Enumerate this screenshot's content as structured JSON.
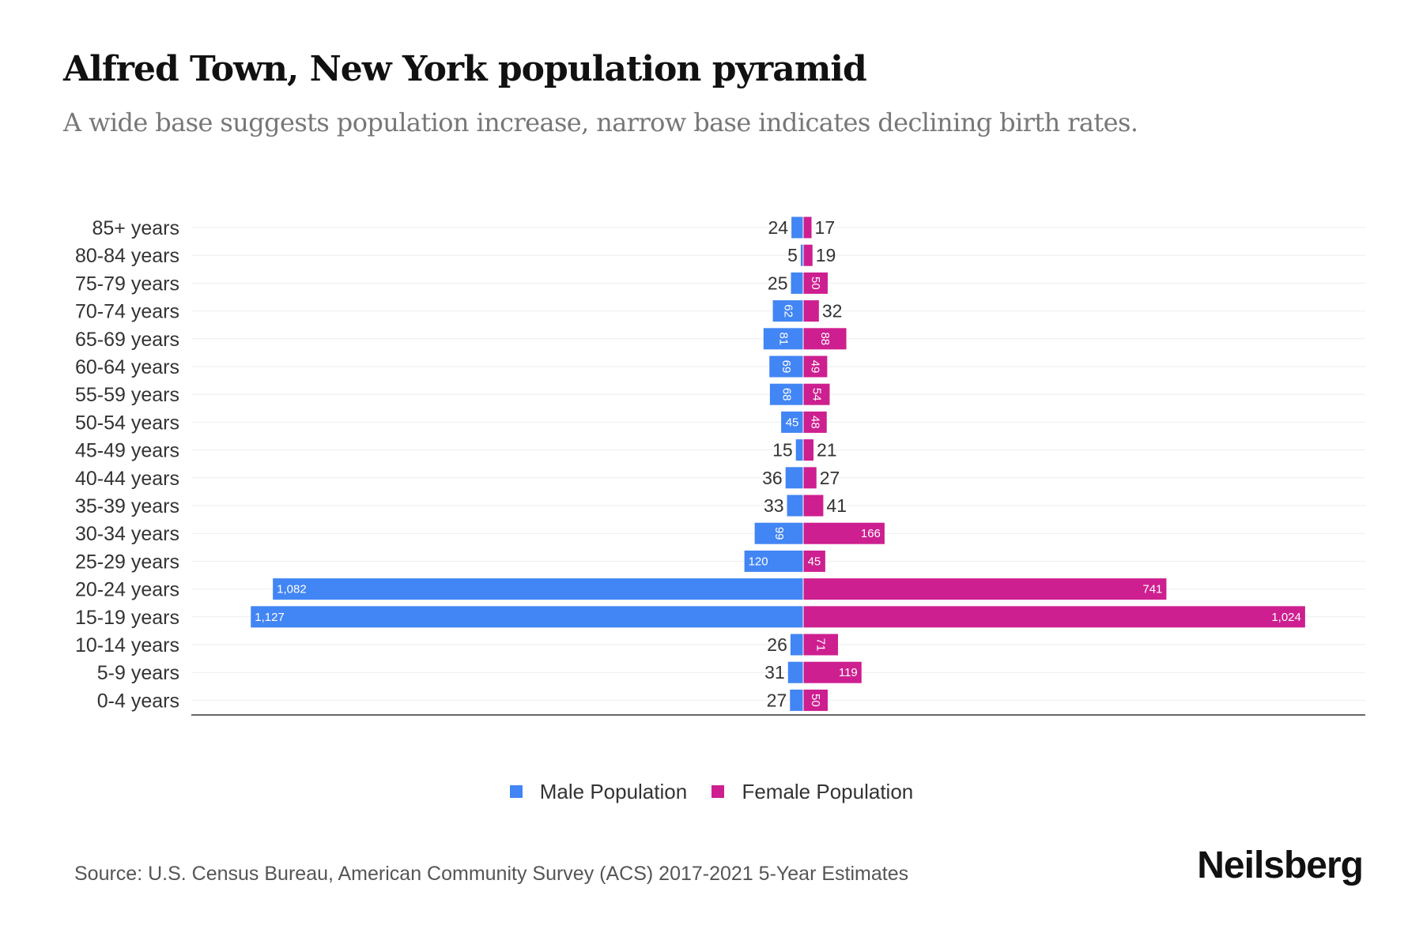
{
  "title": "Alfred Town, New York population pyramid",
  "subtitle": "A wide base suggests population increase, narrow base indicates declining birth rates.",
  "source": "Source: U.S. Census Bureau, American Community Survey (ACS) 2017-2021 5-Year Estimates",
  "brand": "Neilsberg",
  "colors": {
    "male": "#4285f4",
    "female": "#cd1f8f"
  },
  "chart_data": {
    "type": "bar",
    "orientation": "horizontal-pyramid",
    "categories": [
      "85+ years",
      "80-84 years",
      "75-79 years",
      "70-74 years",
      "65-69 years",
      "60-64 years",
      "55-59 years",
      "50-54 years",
      "45-49 years",
      "40-44 years",
      "35-39 years",
      "30-34 years",
      "25-29 years",
      "20-24 years",
      "15-19 years",
      "10-14 years",
      "5-9 years",
      "0-4 years"
    ],
    "series": [
      {
        "name": "Male Population",
        "values": [
          24,
          5,
          25,
          62,
          81,
          69,
          68,
          45,
          15,
          36,
          33,
          99,
          120,
          1082,
          1127,
          26,
          31,
          27
        ],
        "label_style": [
          "outside",
          "outside",
          "outside",
          "rotated",
          "rotated",
          "rotated",
          "rotated",
          "inside",
          "outside",
          "outside",
          "outside",
          "rotated",
          "inside",
          "inside",
          "inside",
          "outside",
          "outside",
          "outside"
        ]
      },
      {
        "name": "Female Population",
        "values": [
          17,
          19,
          50,
          32,
          88,
          49,
          54,
          48,
          21,
          27,
          41,
          166,
          45,
          741,
          1024,
          71,
          119,
          50
        ],
        "label_style": [
          "outside",
          "outside",
          "rotated",
          "outside",
          "rotated",
          "rotated",
          "rotated",
          "rotated",
          "outside",
          "outside",
          "outside",
          "inside",
          "inside",
          "inside",
          "inside",
          "rotated",
          "inside",
          "rotated"
        ]
      }
    ],
    "legend_position": "bottom",
    "grid": true
  }
}
